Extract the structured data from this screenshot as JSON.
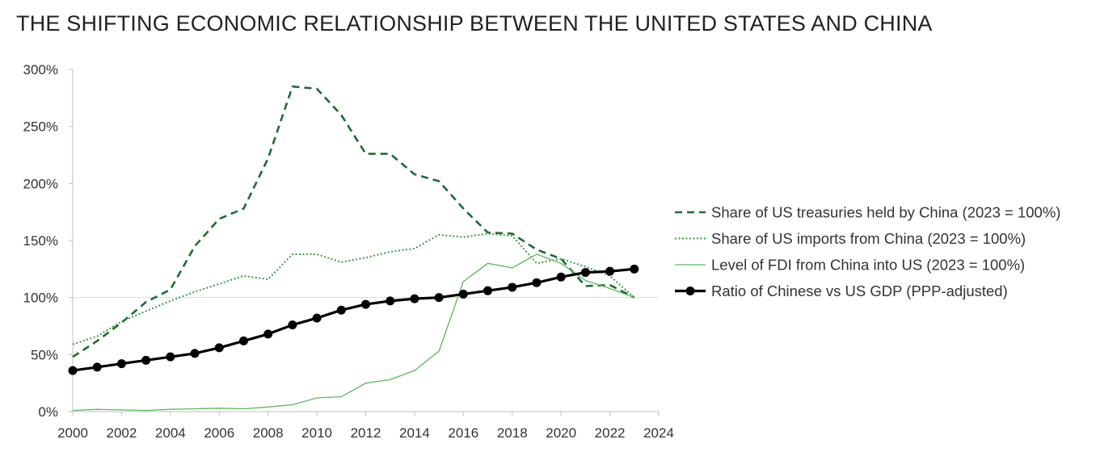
{
  "chart_data": {
    "type": "line",
    "title": "THE SHIFTING ECONOMIC RELATIONSHIP BETWEEN THE UNITED STATES AND CHINA",
    "xlabel": "",
    "ylabel": "",
    "xlim": [
      2000,
      2024
    ],
    "ylim": [
      0,
      300
    ],
    "x_ticks": [
      2000,
      2002,
      2004,
      2006,
      2008,
      2010,
      2012,
      2014,
      2016,
      2018,
      2020,
      2022,
      2024
    ],
    "y_ticks": [
      0,
      50,
      100,
      150,
      200,
      250,
      300
    ],
    "y_tick_format": "percent",
    "reference_line_y": 100,
    "grid": false,
    "legend_position": "right",
    "x": [
      2000,
      2001,
      2002,
      2003,
      2004,
      2005,
      2006,
      2007,
      2008,
      2009,
      2010,
      2011,
      2012,
      2013,
      2014,
      2015,
      2016,
      2017,
      2018,
      2019,
      2020,
      2021,
      2022,
      2023
    ],
    "series": [
      {
        "name": "Share of US treasuries held by China (2023 = 100%)",
        "style": "dashed",
        "color": "#1e6b33",
        "values": [
          48,
          62,
          78,
          96,
          107,
          145,
          169,
          178,
          222,
          285,
          283,
          260,
          226,
          226,
          208,
          202,
          178,
          157,
          156,
          142,
          134,
          110,
          111,
          100
        ]
      },
      {
        "name": "Share of US imports from China (2023 = 100%)",
        "style": "dotted",
        "color": "#3aa040",
        "values": [
          59,
          66,
          79,
          88,
          97,
          105,
          112,
          119,
          116,
          138,
          138,
          131,
          135,
          140,
          143,
          155,
          153,
          156,
          154,
          130,
          134,
          127,
          119,
          100
        ]
      },
      {
        "name": "Level of FDI from China into US (2023 = 100%)",
        "style": "solid-thin",
        "color": "#5cb85c",
        "values": [
          1,
          2,
          1.5,
          1,
          2,
          2.5,
          3,
          2.5,
          4,
          6,
          12,
          13,
          25,
          28,
          36,
          53,
          114,
          130,
          126,
          138,
          130,
          115,
          108,
          100
        ]
      },
      {
        "name": "Ratio of Chinese vs US GDP (PPP-adjusted)",
        "style": "solid-thick-markers",
        "color": "#000000",
        "values": [
          36,
          39,
          42,
          45,
          48,
          51,
          56,
          62,
          68,
          76,
          82,
          89,
          94,
          97,
          99,
          100,
          103,
          106,
          109,
          113,
          118,
          122,
          123,
          125
        ]
      }
    ]
  }
}
